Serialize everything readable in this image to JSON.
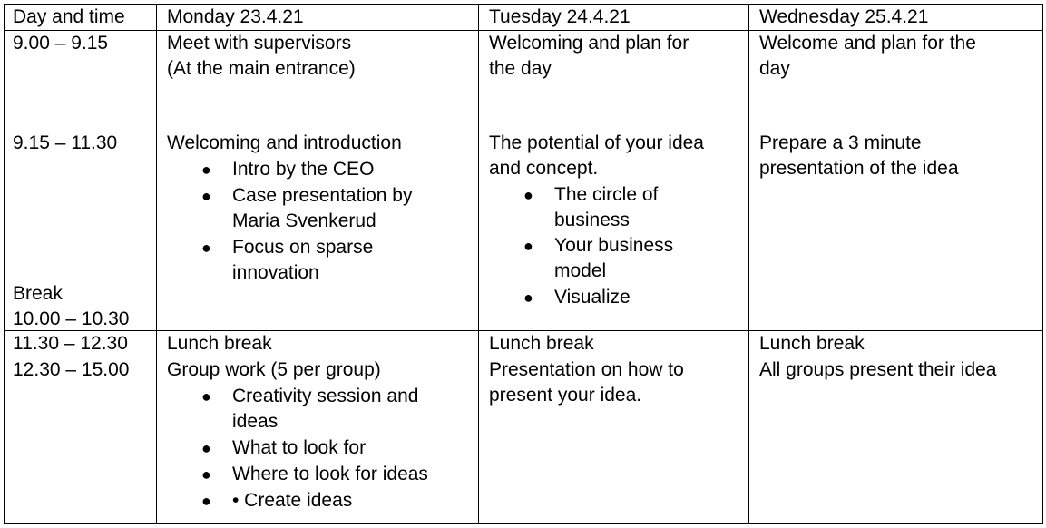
{
  "header": {
    "col0": "Day and time",
    "col1": "Monday 23.4.21",
    "col2": "Tuesday 24.4.21",
    "col3": "Wednesday 25.4.21"
  },
  "rows": {
    "morning": {
      "time_a": "9.00 – 9.15",
      "time_b": "9.15 – 11.30",
      "break_label": "Break",
      "break_time": "10.00 – 10.30",
      "monday": {
        "meet_line1": "Meet with supervisors",
        "meet_line2": "(At the main entrance)",
        "welcome": "Welcoming and introduction",
        "bullets": [
          {
            "line1": "Intro by the CEO",
            "line2": ""
          },
          {
            "line1": "Case presentation by",
            "line2": "Maria Svenkerud"
          },
          {
            "line1": "Focus on sparse",
            "line2": "innovation"
          }
        ]
      },
      "tuesday": {
        "welcome_line1": "Welcoming and plan for",
        "welcome_line2": "the day",
        "potential_line1": "The potential of your idea",
        "potential_line2": "and concept.",
        "bullets": [
          {
            "line1": "The circle of",
            "line2": "business"
          },
          {
            "line1": "Your business",
            "line2": "model"
          },
          {
            "line1": "Visualize",
            "line2": ""
          }
        ]
      },
      "wednesday": {
        "welcome_line1": "Welcome and plan for the",
        "welcome_line2": "day",
        "prepare_line1": "Prepare a 3 minute",
        "prepare_line2": "presentation of the idea"
      }
    },
    "lunch": {
      "time": "11.30 – 12.30",
      "monday": "Lunch break",
      "tuesday": "Lunch break",
      "wednesday": "Lunch break"
    },
    "afternoon": {
      "time": "12.30 – 15.00",
      "monday": {
        "intro": "Group work (5 per group)",
        "bullets": [
          {
            "line1": "Creativity session and",
            "line2": "ideas"
          },
          {
            "line1": "What to look for",
            "line2": ""
          },
          {
            "line1": "Where to look for ideas",
            "line2": ""
          },
          {
            "line1": "• Create ideas",
            "line2": ""
          }
        ]
      },
      "tuesday": {
        "line1": "Presentation on how to",
        "line2": "present your idea."
      },
      "wednesday": "All groups present their idea"
    }
  },
  "bullet_glyph": "●"
}
